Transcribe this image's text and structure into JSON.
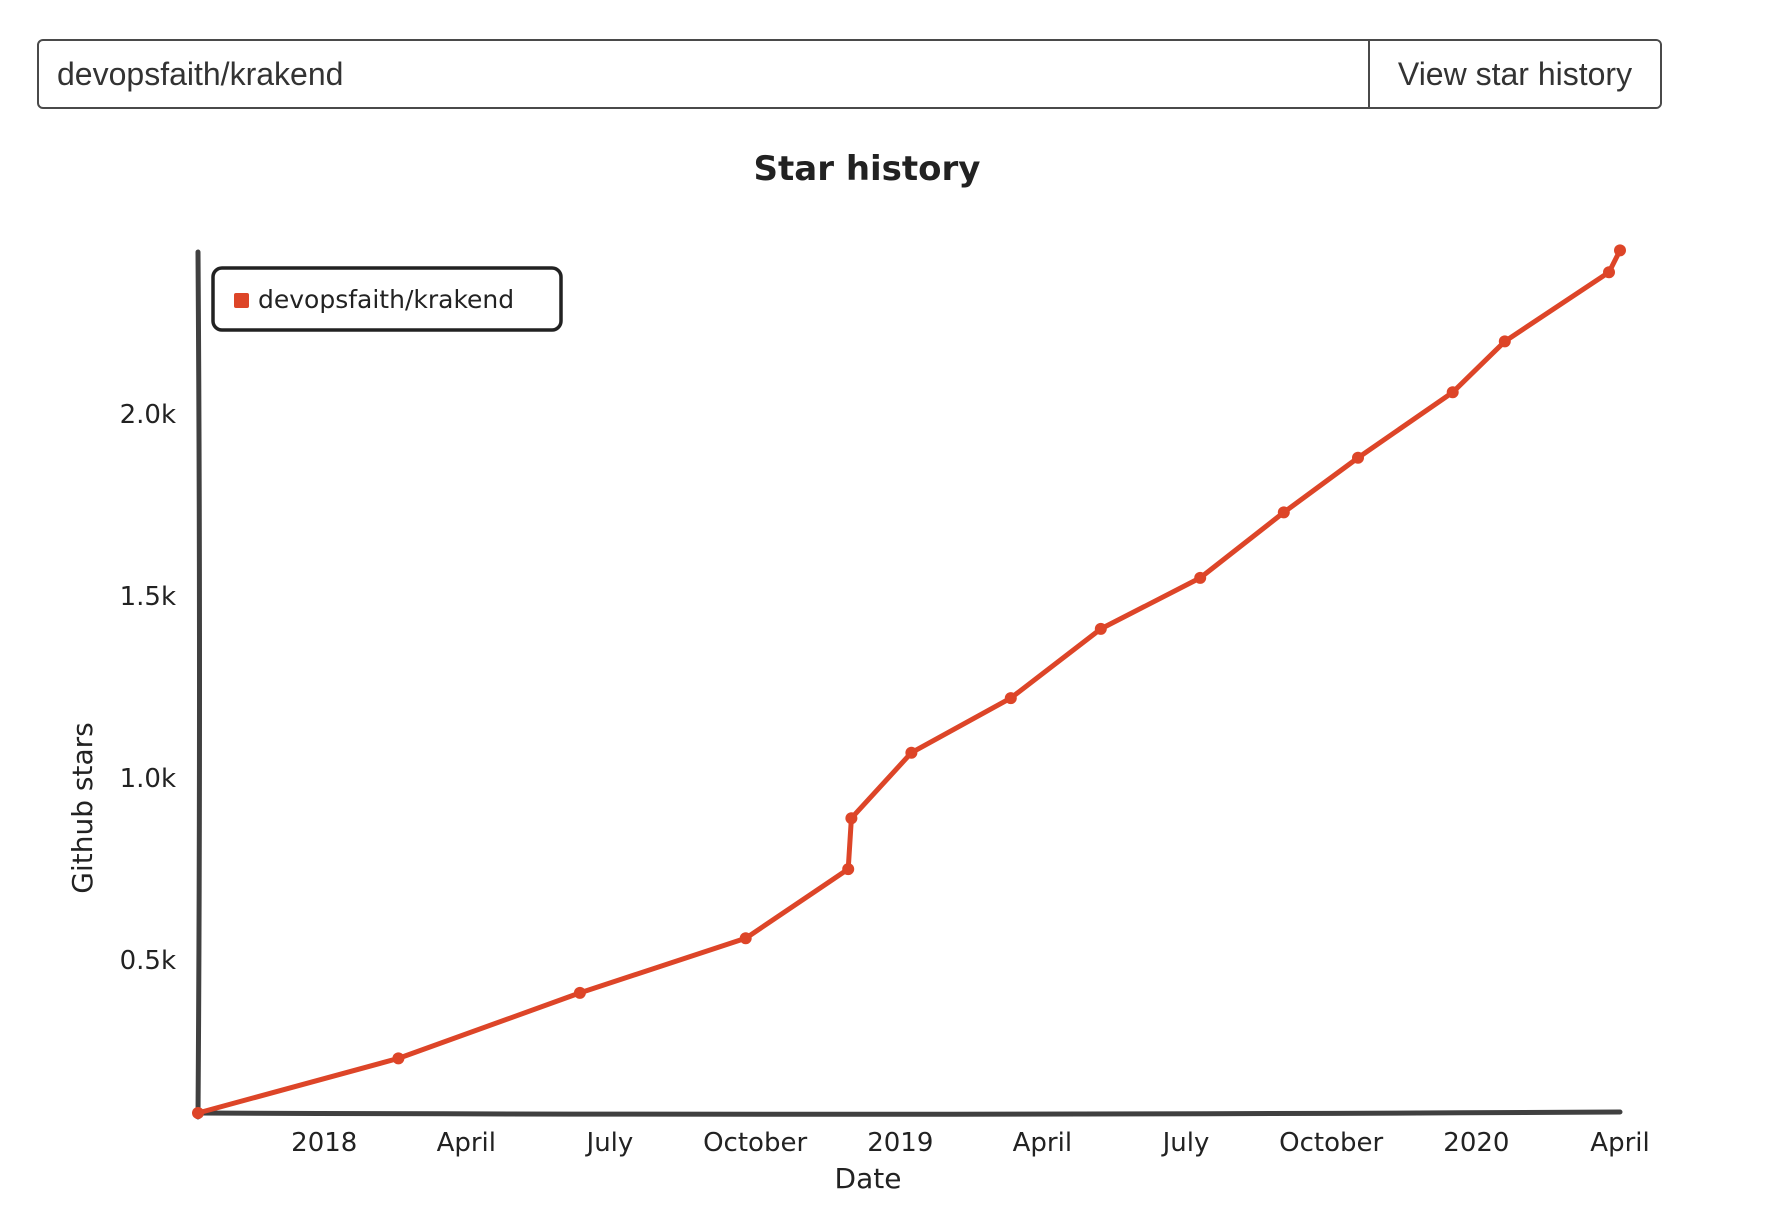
{
  "search": {
    "repo_value": "devopsfaith/krakend",
    "button_label": "View star history"
  },
  "colors": {
    "series": "#dd4528",
    "axis": "#404040"
  },
  "chart_data": {
    "type": "line",
    "title": "Star history",
    "xlabel": "Date",
    "ylabel": "Github stars",
    "x_ticks": [
      {
        "date": "2018-01-01",
        "label": "2018"
      },
      {
        "date": "2018-04-01",
        "label": "April"
      },
      {
        "date": "2018-07-01",
        "label": "July"
      },
      {
        "date": "2018-10-01",
        "label": "October"
      },
      {
        "date": "2019-01-01",
        "label": "2019"
      },
      {
        "date": "2019-04-01",
        "label": "April"
      },
      {
        "date": "2019-07-01",
        "label": "July"
      },
      {
        "date": "2019-10-01",
        "label": "October"
      },
      {
        "date": "2020-01-01",
        "label": "2020"
      },
      {
        "date": "2020-04-01",
        "label": "April"
      }
    ],
    "y_ticks": [
      {
        "value": 500,
        "label": "0.5k"
      },
      {
        "value": 1000,
        "label": "1.0k"
      },
      {
        "value": 1500,
        "label": "1.5k"
      },
      {
        "value": 2000,
        "label": "2.0k"
      }
    ],
    "xlim": [
      "2017-10-13",
      "2020-04-01"
    ],
    "ylim": [
      80,
      2440
    ],
    "legend_position": "top-left",
    "grid": false,
    "series": [
      {
        "name": "devopsfaith/krakend",
        "points": [
          {
            "x": "2017-10-13",
            "y": 80
          },
          {
            "x": "2018-02-17",
            "y": 230
          },
          {
            "x": "2018-06-12",
            "y": 410
          },
          {
            "x": "2018-09-25",
            "y": 560
          },
          {
            "x": "2018-11-29",
            "y": 750
          },
          {
            "x": "2018-12-01",
            "y": 890
          },
          {
            "x": "2019-01-08",
            "y": 1070
          },
          {
            "x": "2019-03-12",
            "y": 1220
          },
          {
            "x": "2019-05-08",
            "y": 1410
          },
          {
            "x": "2019-07-10",
            "y": 1550
          },
          {
            "x": "2019-09-01",
            "y": 1730
          },
          {
            "x": "2019-10-18",
            "y": 1880
          },
          {
            "x": "2019-12-17",
            "y": 2060
          },
          {
            "x": "2020-01-19",
            "y": 2200
          },
          {
            "x": "2020-03-25",
            "y": 2390
          },
          {
            "x": "2020-04-01",
            "y": 2450
          }
        ]
      }
    ]
  }
}
